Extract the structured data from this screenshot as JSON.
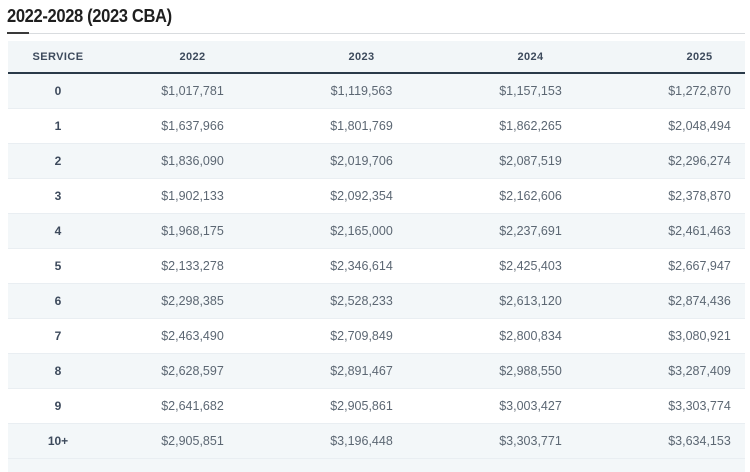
{
  "page": {
    "title": "2022-2028 (2023 CBA)"
  },
  "colors": {
    "header_bg": "#f2f6f8",
    "stripe_bg": "#f3f7f9",
    "header_border": "#2a3a49",
    "header_text": "#3d4a5c",
    "cell_text": "#5c6773",
    "title_text": "#1f1f1f"
  },
  "chart_data": {
    "type": "table",
    "title": "2022-2028 (2023 CBA)",
    "columns": [
      "SERVICE",
      "2022",
      "2023",
      "2024",
      "2025"
    ],
    "rows": [
      {
        "service": "0",
        "values": [
          "$1,017,781",
          "$1,119,563",
          "$1,157,153",
          "$1,272,870"
        ]
      },
      {
        "service": "1",
        "values": [
          "$1,637,966",
          "$1,801,769",
          "$1,862,265",
          "$2,048,494"
        ]
      },
      {
        "service": "2",
        "values": [
          "$1,836,090",
          "$2,019,706",
          "$2,087,519",
          "$2,296,274"
        ]
      },
      {
        "service": "3",
        "values": [
          "$1,902,133",
          "$2,092,354",
          "$2,162,606",
          "$2,378,870"
        ]
      },
      {
        "service": "4",
        "values": [
          "$1,968,175",
          "$2,165,000",
          "$2,237,691",
          "$2,461,463"
        ]
      },
      {
        "service": "5",
        "values": [
          "$2,133,278",
          "$2,346,614",
          "$2,425,403",
          "$2,667,947"
        ]
      },
      {
        "service": "6",
        "values": [
          "$2,298,385",
          "$2,528,233",
          "$2,613,120",
          "$2,874,436"
        ]
      },
      {
        "service": "7",
        "values": [
          "$2,463,490",
          "$2,709,849",
          "$2,800,834",
          "$3,080,921"
        ]
      },
      {
        "service": "8",
        "values": [
          "$2,628,597",
          "$2,891,467",
          "$2,988,550",
          "$3,287,409"
        ]
      },
      {
        "service": "9",
        "values": [
          "$2,641,682",
          "$2,905,861",
          "$3,003,427",
          "$3,303,774"
        ]
      },
      {
        "service": "10+",
        "values": [
          "$2,905,851",
          "$3,196,448",
          "$3,303,771",
          "$3,634,153"
        ]
      }
    ]
  }
}
